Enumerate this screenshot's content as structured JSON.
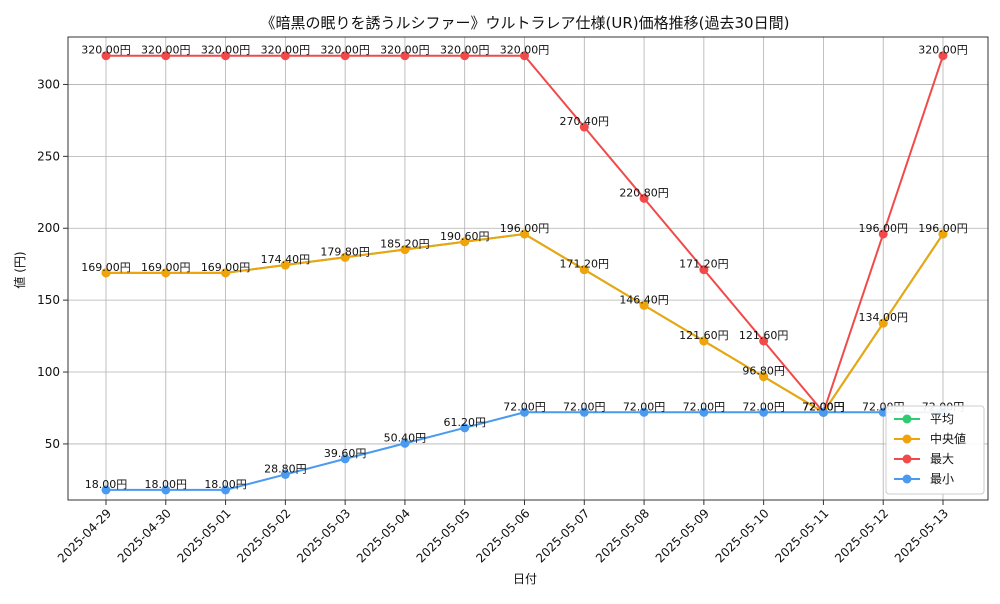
{
  "chart_data": {
    "type": "line",
    "title": "《暗黒の眠りを誘うルシファー》ウルトラレア仕様(UR)価格推移(過去30日間)",
    "xlabel": "日付",
    "ylabel": "値 (円)",
    "categories": [
      "2025-04-29",
      "2025-04-30",
      "2025-05-01",
      "2025-05-02",
      "2025-05-03",
      "2025-05-04",
      "2025-05-05",
      "2025-05-06",
      "2025-05-07",
      "2025-05-08",
      "2025-05-09",
      "2025-05-10",
      "2025-05-11",
      "2025-05-12",
      "2025-05-13"
    ],
    "ylim": [
      11,
      333
    ],
    "yticks": [
      50,
      100,
      150,
      200,
      250,
      300
    ],
    "grid": true,
    "legend_position": "lower-right",
    "label_suffix": "円",
    "series": [
      {
        "name": "平均",
        "color": "#2ecc71",
        "show_labels": false,
        "values": [
          169.0,
          169.0,
          169.0,
          174.4,
          179.8,
          185.2,
          190.6,
          196.0,
          171.2,
          146.4,
          121.6,
          96.8,
          72.0,
          134.0,
          196.0
        ]
      },
      {
        "name": "中央値",
        "color": "#f0a30a",
        "show_labels": true,
        "values": [
          169.0,
          169.0,
          169.0,
          174.4,
          179.8,
          185.2,
          190.6,
          196.0,
          171.2,
          146.4,
          121.6,
          96.8,
          72.0,
          134.0,
          196.0
        ]
      },
      {
        "name": "最大",
        "color": "#f04a4a",
        "show_labels": true,
        "values": [
          320.0,
          320.0,
          320.0,
          320.0,
          320.0,
          320.0,
          320.0,
          320.0,
          270.4,
          220.8,
          171.2,
          121.6,
          72.0,
          196.0,
          320.0
        ]
      },
      {
        "name": "最小",
        "color": "#4a9af0",
        "show_labels": true,
        "values": [
          18.0,
          18.0,
          18.0,
          28.8,
          39.6,
          50.4,
          61.2,
          72.0,
          72.0,
          72.0,
          72.0,
          72.0,
          72.0,
          72.0,
          72.0
        ]
      }
    ]
  }
}
